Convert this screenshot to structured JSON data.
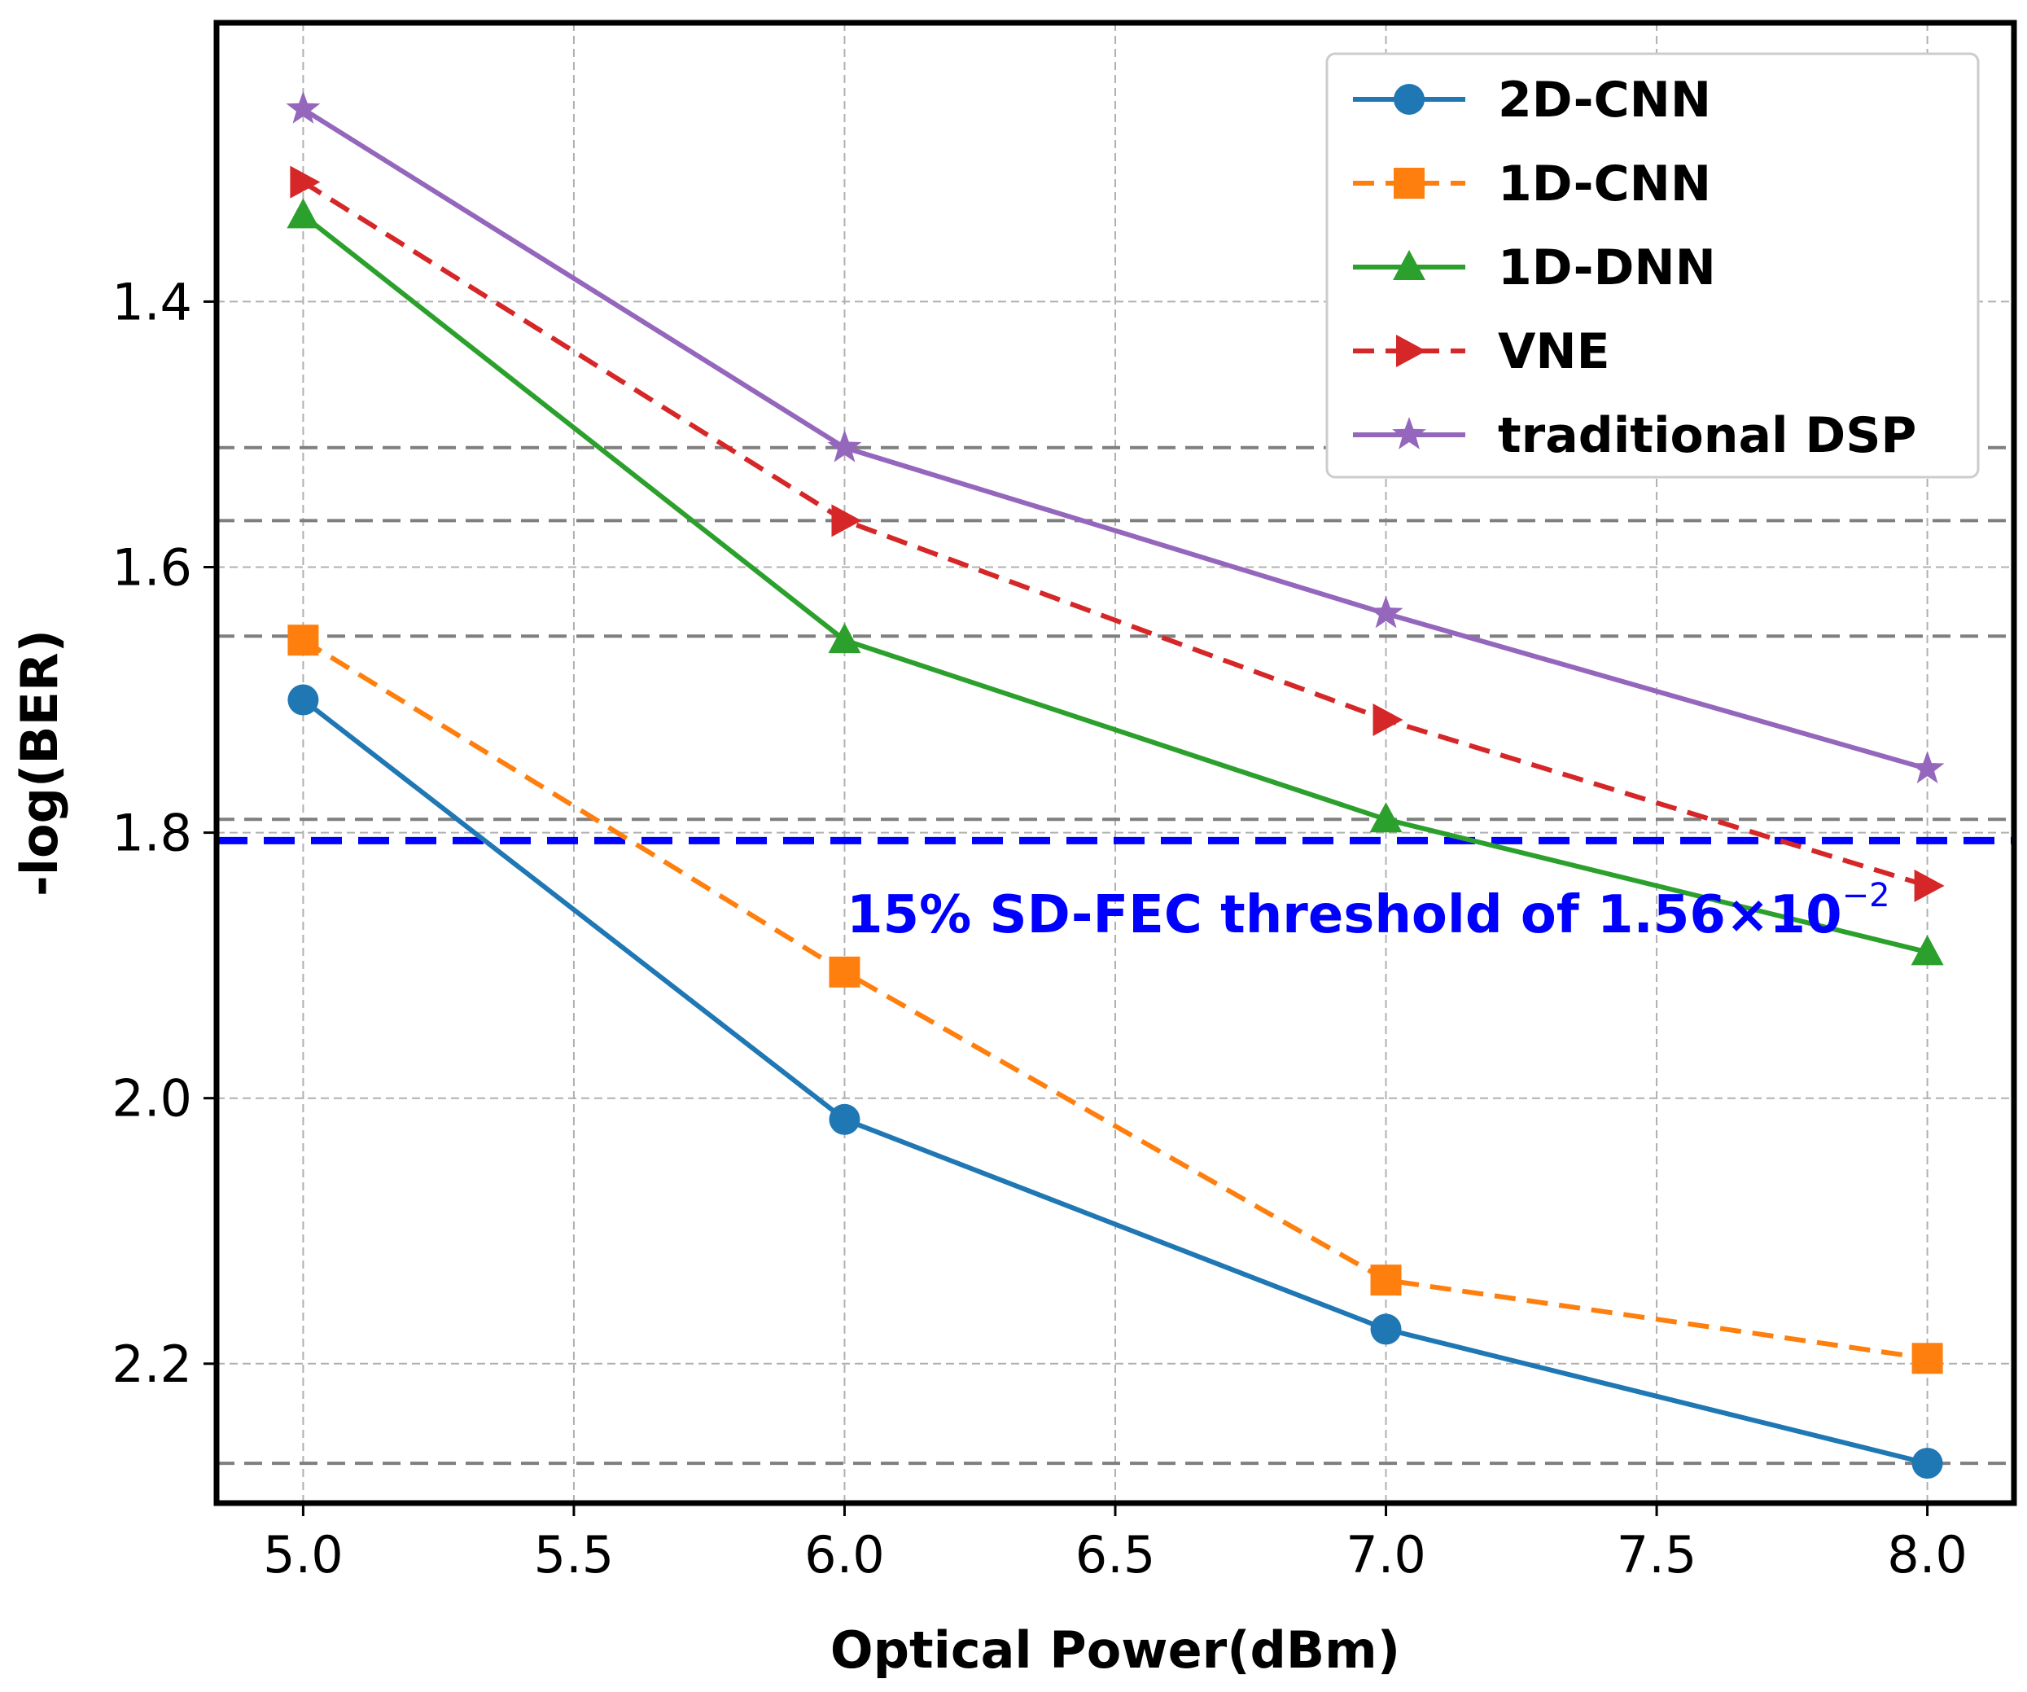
{
  "chart_data": {
    "type": "line",
    "xlabel": "Optical Power(dBm)",
    "ylabel": "-log(BER)",
    "x": [
      5.0,
      6.0,
      7.0,
      8.0
    ],
    "xlim": [
      4.84,
      8.16
    ],
    "ylim": [
      2.305,
      1.19
    ],
    "y_inverted": true,
    "xticks": [
      5.0,
      5.5,
      6.0,
      6.5,
      7.0,
      7.5,
      8.0
    ],
    "xtick_labels": [
      "5.0",
      "5.5",
      "6.0",
      "6.5",
      "7.0",
      "7.5",
      "8.0"
    ],
    "yticks": [
      1.4,
      1.6,
      1.8,
      2.0,
      2.2
    ],
    "ytick_labels": [
      "1.4",
      "1.6",
      "1.8",
      "2.0",
      "2.2"
    ],
    "grid": true,
    "legend_position": "top-right",
    "series": [
      {
        "name": "2D-CNN",
        "values": [
          1.7,
          2.016,
          2.174,
          2.275
        ],
        "color": "#1f77b4",
        "marker": "circle",
        "dash": "solid"
      },
      {
        "name": "1D-CNN",
        "values": [
          1.655,
          1.905,
          2.137,
          2.196
        ],
        "color": "#ff7f0e",
        "marker": "square",
        "dash": "dashed"
      },
      {
        "name": "1D-DNN",
        "values": [
          1.335,
          1.655,
          1.79,
          1.89
        ],
        "color": "#2ca02c",
        "marker": "triangle-up",
        "dash": "solid"
      },
      {
        "name": "VNE",
        "values": [
          1.31,
          1.565,
          1.715,
          1.84
        ],
        "color": "#d62728",
        "marker": "triangle-right",
        "dash": "dashed"
      },
      {
        "name": "traditional DSP",
        "values": [
          1.255,
          1.51,
          1.635,
          1.752
        ],
        "color": "#9467bd",
        "marker": "star",
        "dash": "solid"
      }
    ],
    "reference_lines": [
      1.51,
      1.565,
      1.652,
      1.79,
      2.275
    ],
    "threshold": {
      "value": 1.806,
      "color": "#0000ff",
      "label": "15% SD-FEC threshold of 1.56×10",
      "label_exponent": "−2"
    }
  }
}
